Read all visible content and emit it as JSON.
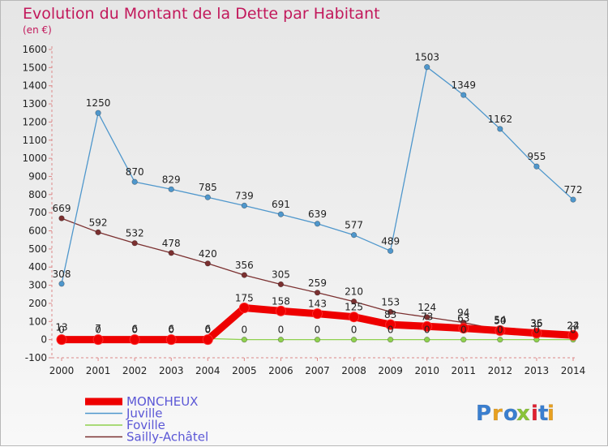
{
  "chart_data": {
    "type": "line",
    "title": "Evolution du Montant de la Dette par Habitant",
    "subtitle": "(en €)",
    "xlabel": "",
    "ylabel": "",
    "ylim": [
      -100,
      1600
    ],
    "yticks": [
      -100,
      0,
      100,
      200,
      300,
      400,
      500,
      600,
      700,
      800,
      900,
      1000,
      1100,
      1200,
      1300,
      1400,
      1500,
      1600
    ],
    "categories": [
      "2000",
      "2001",
      "2002",
      "2003",
      "2004",
      "2005",
      "2006",
      "2007",
      "2008",
      "2009",
      "2010",
      "2011",
      "2012",
      "2013",
      "2014"
    ],
    "grid": false,
    "legend_position": "bottom-left",
    "series": [
      {
        "name": "MONCHEUX",
        "color": "#ee0000",
        "values": [
          0,
          0,
          0,
          0,
          0,
          175,
          158,
          143,
          125,
          83,
          73,
          63,
          50,
          36,
          24
        ]
      },
      {
        "name": "Juville",
        "color": "#4f97cc",
        "values": [
          308,
          1250,
          870,
          829,
          785,
          739,
          691,
          639,
          577,
          489,
          1503,
          1349,
          1162,
          955,
          772
        ]
      },
      {
        "name": "Foville",
        "color": "#8fd14f",
        "values": [
          13,
          7,
          6,
          6,
          6,
          0,
          0,
          0,
          0,
          0,
          0,
          0,
          0,
          0,
          0
        ]
      },
      {
        "name": "Sailly-Achâtel",
        "color": "#7b3030",
        "values": [
          669,
          592,
          532,
          478,
          420,
          356,
          305,
          259,
          210,
          153,
          124,
          94,
          54,
          35,
          22
        ]
      }
    ],
    "data_labels": [
      {
        "series": 0,
        "labels": [
          "0",
          "0",
          "0",
          "0",
          "0",
          "175",
          "158",
          "143",
          "125",
          "83",
          "73",
          "63",
          "50",
          "36",
          "24"
        ]
      },
      {
        "series": 1,
        "labels": [
          "308",
          "1250",
          "870",
          "829",
          "785",
          "739",
          "691",
          "639",
          "577",
          "489",
          "1503",
          "1349",
          "1162",
          "955",
          "772"
        ]
      },
      {
        "series": 2,
        "labels": [
          "13",
          "7",
          "6",
          "6",
          "6",
          "0",
          "0",
          "0",
          "0",
          "0",
          "0",
          "0",
          "0",
          "0",
          "0"
        ]
      },
      {
        "series": 3,
        "labels": [
          "669",
          "592",
          "532",
          "478",
          "420",
          "356",
          "305",
          "259",
          "210",
          "153",
          "124",
          "94",
          "54",
          "35",
          "22"
        ]
      }
    ]
  },
  "branding": {
    "logo_text": "Proxiti",
    "logo_colors": [
      "#3a7fd0",
      "#e8a020",
      "#3a7fd0",
      "#8ac43a",
      "#e02030",
      "#3a7fd0",
      "#e8a020"
    ]
  }
}
